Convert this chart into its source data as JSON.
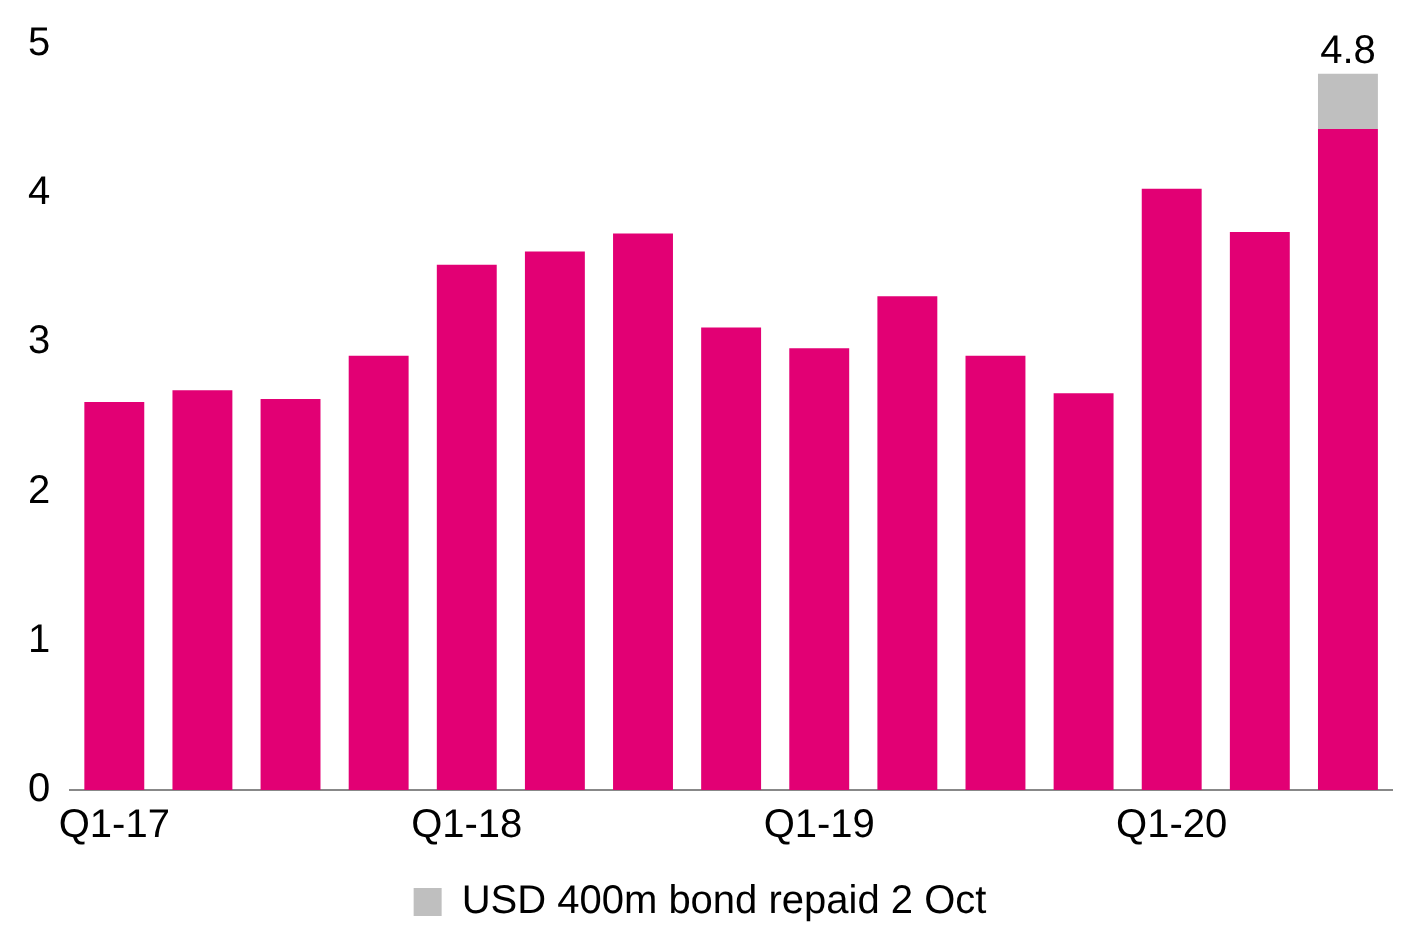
{
  "chart_data": {
    "type": "bar",
    "stacked": true,
    "categories": [
      "Q1-17",
      null,
      null,
      null,
      "Q1-18",
      null,
      null,
      null,
      "Q1-19",
      null,
      null,
      null,
      "Q1-20",
      null,
      null
    ],
    "series": [
      {
        "color": "#e20074",
        "values": [
          2.6,
          2.68,
          2.62,
          2.91,
          3.52,
          3.61,
          3.73,
          3.1,
          2.96,
          3.31,
          2.91,
          2.66,
          4.03,
          3.74,
          4.43
        ]
      },
      {
        "name": "USD 400m bond repaid 2 Oct",
        "color": "#bfbfbf",
        "values": [
          null,
          null,
          null,
          null,
          null,
          null,
          null,
          null,
          null,
          null,
          null,
          null,
          null,
          null,
          0.37
        ]
      }
    ],
    "totals": [
      null,
      null,
      null,
      null,
      null,
      null,
      null,
      null,
      null,
      null,
      null,
      null,
      null,
      null,
      "4.8"
    ],
    "ylim": [
      0,
      5
    ],
    "yticks": [
      0,
      1,
      2,
      3,
      4,
      5
    ],
    "grid": false,
    "legend": "bottom"
  }
}
